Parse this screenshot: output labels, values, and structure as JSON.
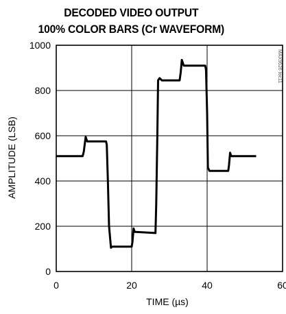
{
  "chart_data": {
    "type": "line",
    "title_line1": "DECODED VIDEO OUTPUT",
    "title_line2": "100% COLOR BARS (Cr WAVEFORM)",
    "xlabel": "TIME (µs)",
    "ylabel": "AMPLITUDE (LSB)",
    "xlim": [
      0,
      60
    ],
    "ylim": [
      0,
      1000
    ],
    "xticks": [
      0,
      20,
      40,
      60
    ],
    "xtick_labels": [
      "0",
      "20",
      "40",
      "60"
    ],
    "yticks": [
      0,
      200,
      400,
      600,
      800,
      1000
    ],
    "ytick_labels": [
      "0",
      "200",
      "400",
      "600",
      "800",
      "1000"
    ],
    "grid": true,
    "side_label": "MAX9526 toc11",
    "series": [
      {
        "x": [
          0,
          7.0,
          7.3,
          7.8,
          8.2,
          13.2,
          13.4,
          13.7,
          14.0,
          14.5,
          14.8,
          20.0,
          20.2,
          20.5,
          20.8,
          21.0,
          26.3,
          26.5,
          26.8,
          27.0,
          27.4,
          28.0,
          32.7,
          33.0,
          33.3,
          33.8,
          39.5,
          39.7,
          40.0,
          40.2,
          40.6,
          45.6,
          45.8,
          46.1,
          46.4,
          53
        ],
        "y": [
          510,
          510,
          530,
          595,
          575,
          575,
          560,
          400,
          200,
          105,
          110,
          110,
          130,
          190,
          175,
          175,
          170,
          300,
          600,
          845,
          855,
          845,
          845,
          880,
          935,
          910,
          910,
          890,
          700,
          460,
          445,
          445,
          470,
          525,
          510,
          510
        ]
      }
    ]
  }
}
